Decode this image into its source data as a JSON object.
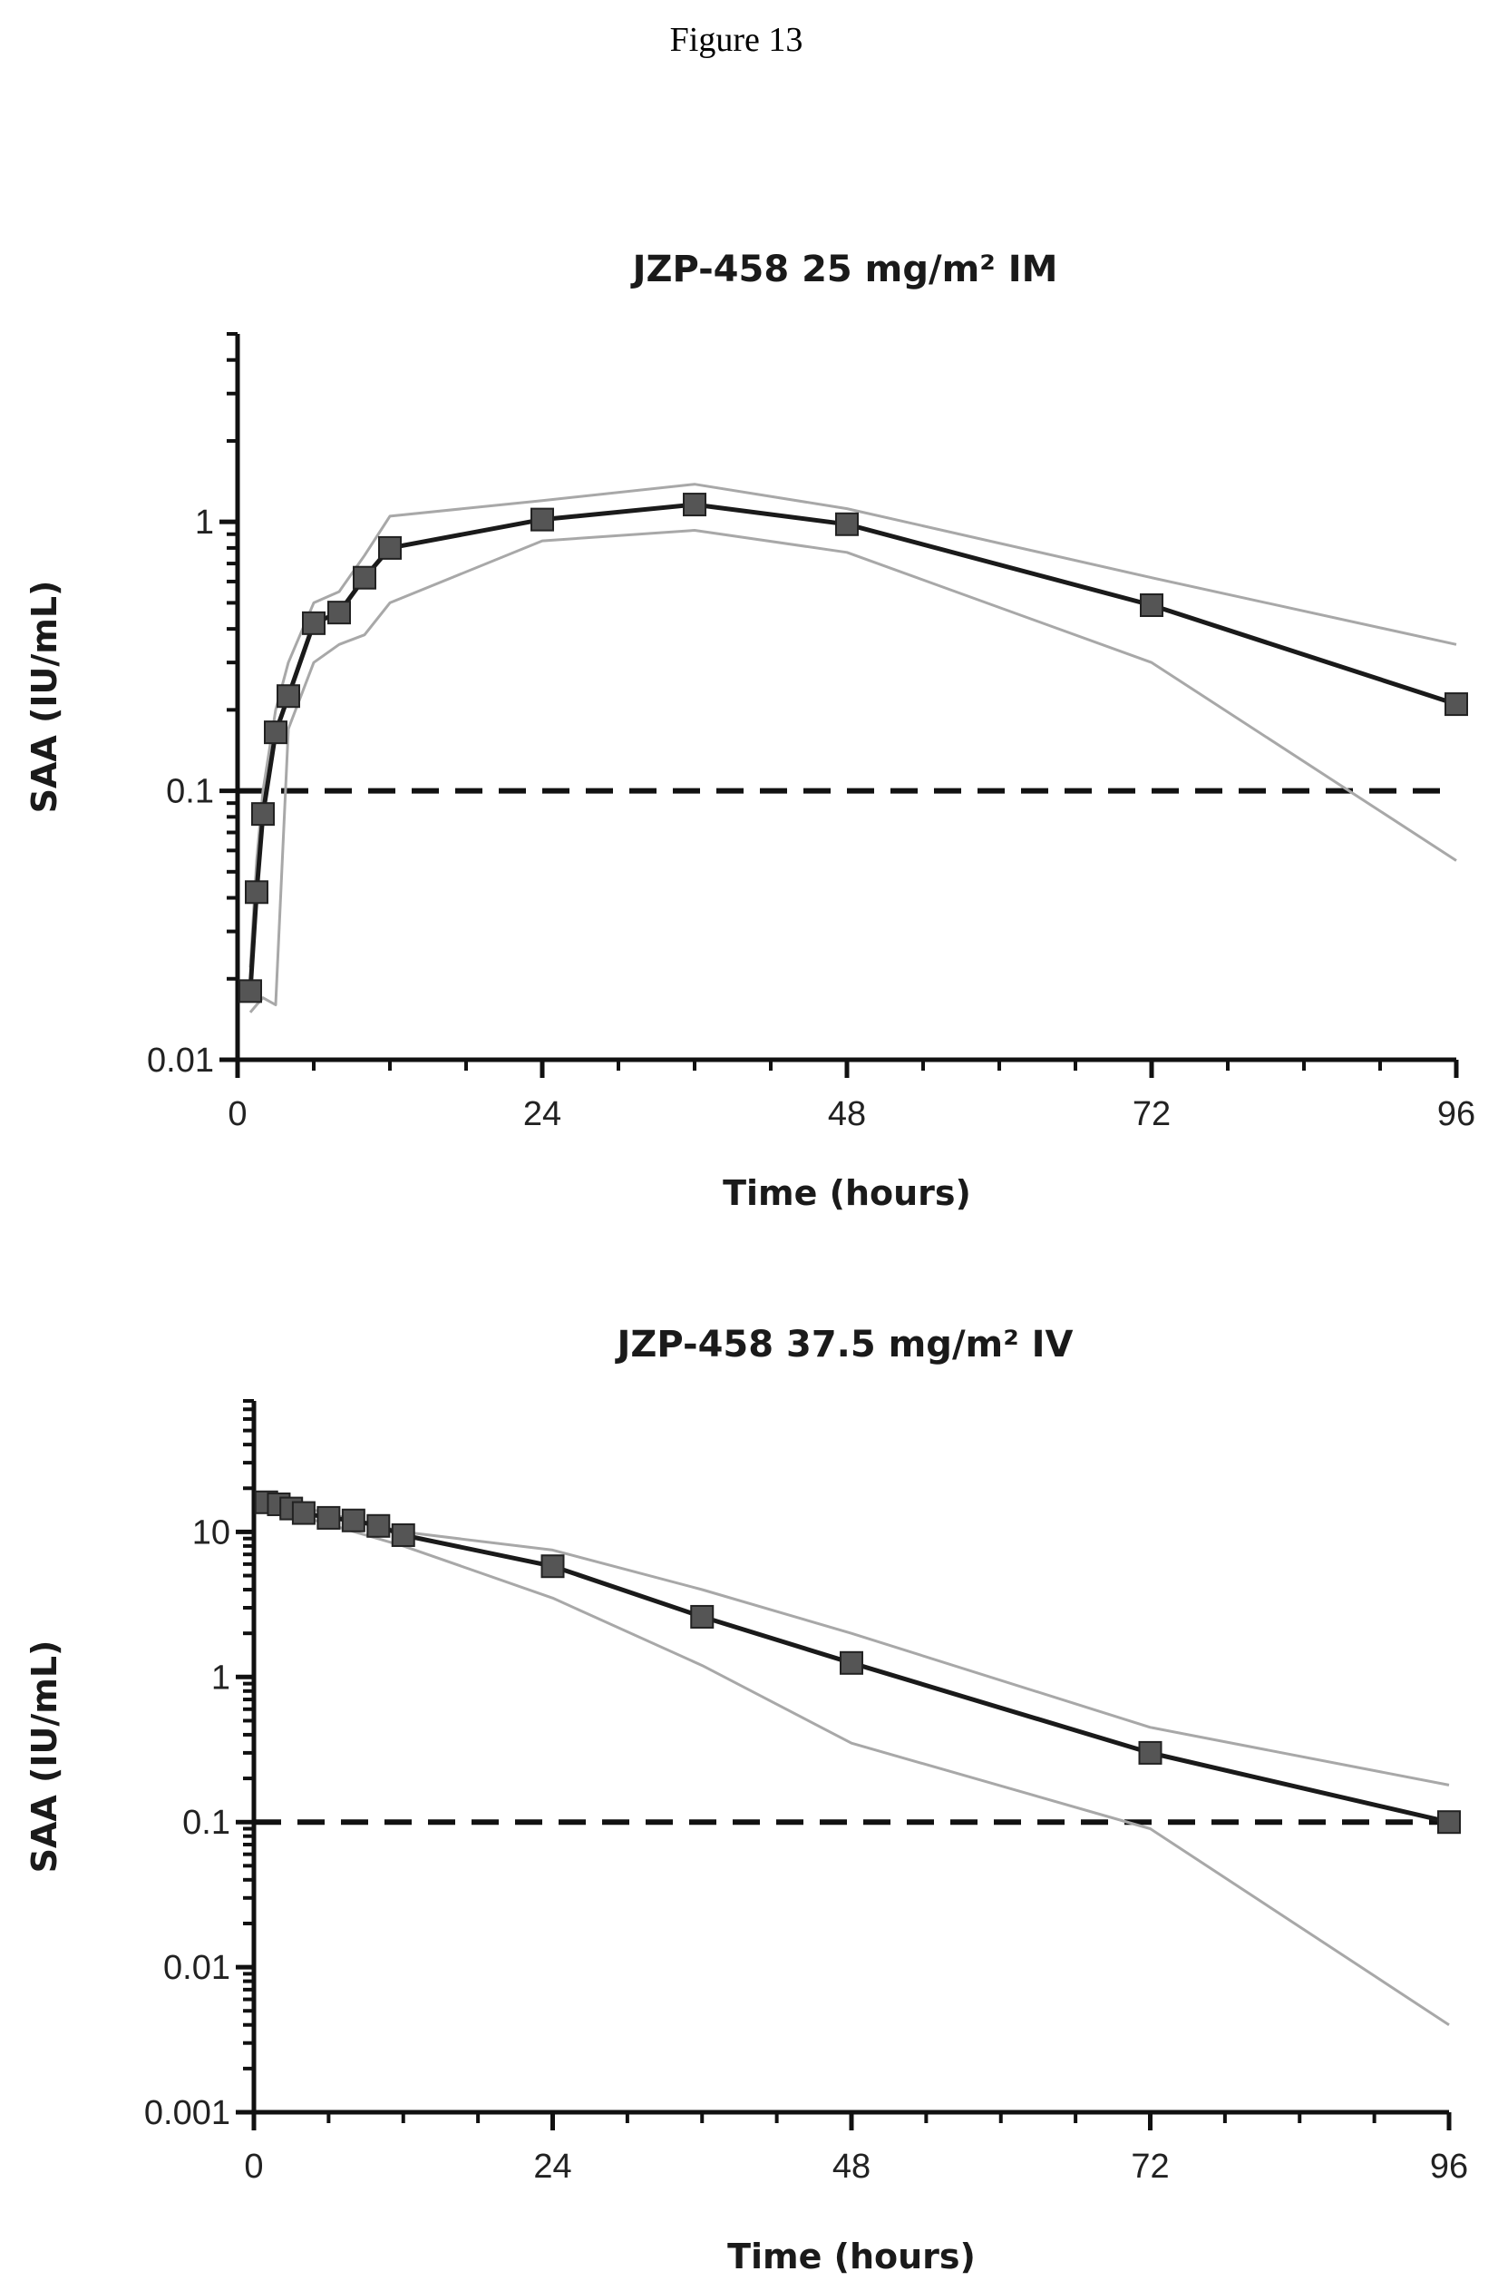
{
  "figure_label": "Figure 13",
  "chart_data": [
    {
      "type": "line",
      "title": "JZP-458 25 mg/m² IM",
      "xlabel": "Time (hours)",
      "ylabel": "SAA (IU/mL)",
      "yscale": "log",
      "xlim": [
        0,
        96
      ],
      "ylim": [
        0.01,
        5
      ],
      "x_ticks": [
        0,
        24,
        48,
        72,
        96
      ],
      "x_tick_labels": [
        "0",
        "24",
        "48",
        "72",
        "96"
      ],
      "y_ticks": [
        0.01,
        0.1,
        1
      ],
      "y_tick_labels": [
        "0.01",
        "0.1",
        "1"
      ],
      "grid": false,
      "legend": "none",
      "reference_line": {
        "y": 0.1,
        "style": "dashed"
      },
      "series": [
        {
          "role": "median",
          "color": "#1a1a1a",
          "marker": "square",
          "x": [
            1,
            1.5,
            2,
            3,
            4,
            6,
            8,
            10,
            12,
            24,
            36,
            48,
            72,
            96
          ],
          "y": [
            0.018,
            0.042,
            0.082,
            0.165,
            0.225,
            0.42,
            0.46,
            0.62,
            0.8,
            1.02,
            1.16,
            0.98,
            0.49,
            0.21
          ]
        },
        {
          "role": "upper",
          "color": "#a8a8a8",
          "marker": "none",
          "x": [
            1,
            1.5,
            2,
            3,
            4,
            6,
            8,
            10,
            12,
            24,
            36,
            48,
            72,
            96
          ],
          "y": [
            0.022,
            0.055,
            0.1,
            0.2,
            0.3,
            0.5,
            0.55,
            0.75,
            1.05,
            1.2,
            1.38,
            1.12,
            0.62,
            0.35
          ]
        },
        {
          "role": "lower",
          "color": "#a8a8a8",
          "marker": "none",
          "x": [
            1,
            1.5,
            2,
            3,
            4,
            6,
            8,
            10,
            12,
            24,
            36,
            48,
            72,
            96
          ],
          "y": [
            0.015,
            0.016,
            0.017,
            0.016,
            0.17,
            0.3,
            0.35,
            0.38,
            0.5,
            0.85,
            0.93,
            0.77,
            0.3,
            0.055
          ]
        }
      ]
    },
    {
      "type": "line",
      "title": "JZP-458 37.5 mg/m² IV",
      "xlabel": "Time (hours)",
      "ylabel": "SAA (IU/mL)",
      "yscale": "log",
      "xlim": [
        0,
        96
      ],
      "ylim": [
        0.001,
        80
      ],
      "x_ticks": [
        0,
        24,
        48,
        72,
        96
      ],
      "x_tick_labels": [
        "0",
        "24",
        "48",
        "72",
        "96"
      ],
      "y_ticks": [
        0.001,
        0.01,
        0.1,
        1,
        10
      ],
      "y_tick_labels": [
        "0.001",
        "0.01",
        "0.1",
        "1",
        "10"
      ],
      "grid": false,
      "legend": "none",
      "reference_line": {
        "y": 0.1,
        "style": "dashed"
      },
      "series": [
        {
          "role": "median",
          "color": "#1a1a1a",
          "marker": "square",
          "x": [
            1,
            2,
            3,
            4,
            6,
            8,
            10,
            12,
            24,
            36,
            48,
            72,
            96
          ],
          "y": [
            16,
            15.5,
            14.5,
            13.5,
            12.5,
            12,
            11,
            9.5,
            5.8,
            2.6,
            1.25,
            0.3,
            0.1
          ]
        },
        {
          "role": "upper",
          "color": "#a8a8a8",
          "marker": "none",
          "x": [
            1,
            12,
            24,
            36,
            48,
            72,
            96
          ],
          "y": [
            17,
            10,
            7.5,
            4,
            2,
            0.45,
            0.18
          ]
        },
        {
          "role": "lower",
          "color": "#a8a8a8",
          "marker": "none",
          "x": [
            1,
            12,
            24,
            36,
            48,
            72,
            96
          ],
          "y": [
            15,
            8,
            3.5,
            1.2,
            0.35,
            0.09,
            0.004
          ]
        }
      ]
    }
  ]
}
